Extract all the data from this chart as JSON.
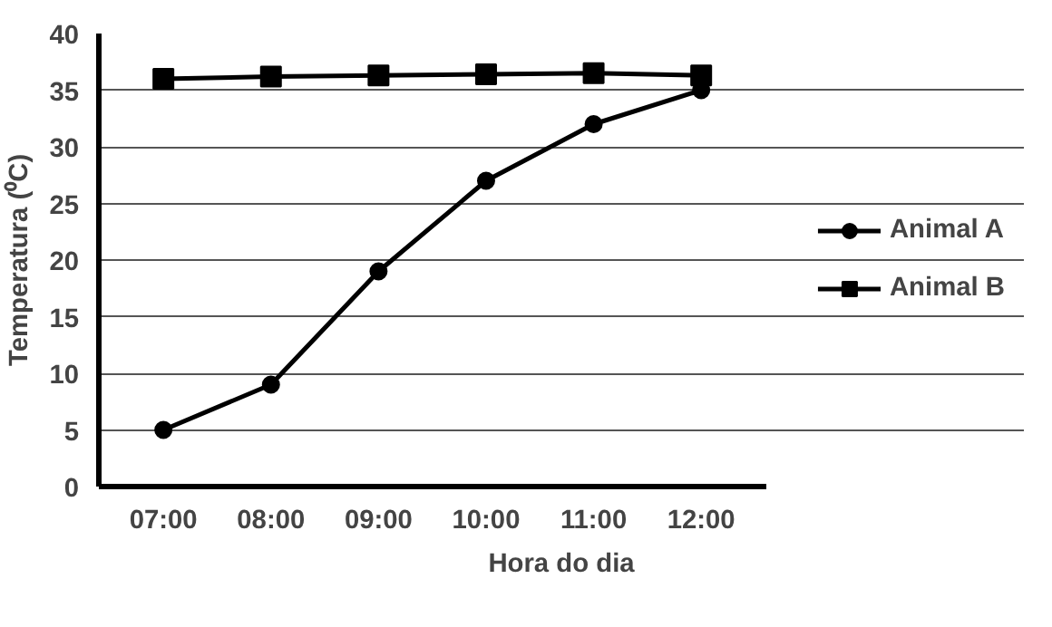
{
  "chart_data": {
    "type": "line",
    "xlabel": "Hora do dia",
    "ylabel": "Temperatura (⁰C)",
    "categories": [
      "07:00",
      "08:00",
      "09:00",
      "10:00",
      "11:00",
      "12:00"
    ],
    "series": [
      {
        "name": "Animal A",
        "color": "#000000",
        "marker": "circle",
        "values": [
          5,
          9,
          19,
          27,
          32,
          35
        ]
      },
      {
        "name": "Animal B",
        "color": "#000000",
        "marker": "square",
        "values": [
          36,
          36.2,
          36.3,
          36.4,
          36.5,
          36.3
        ]
      }
    ],
    "ylim": [
      0,
      40
    ],
    "yticks": [
      0,
      5,
      10,
      15,
      20,
      25,
      30,
      35,
      40
    ],
    "grid": "y",
    "legend": "right",
    "line_style": "solid"
  }
}
